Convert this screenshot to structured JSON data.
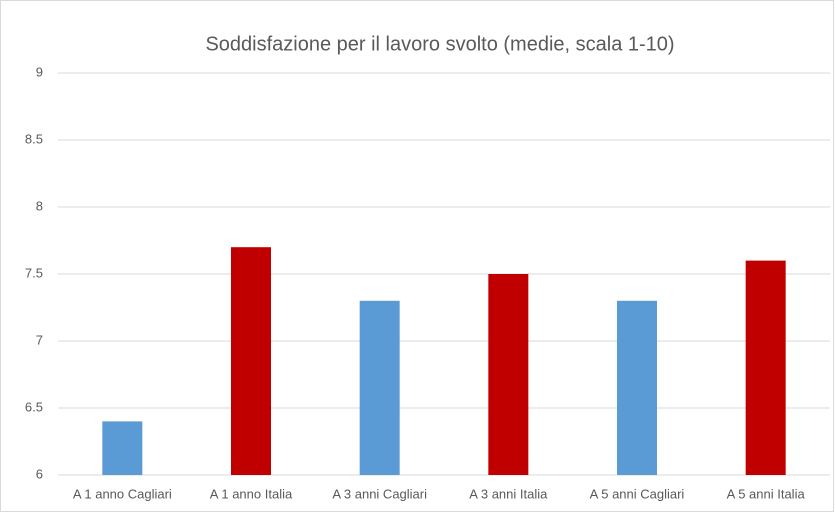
{
  "chart_data": {
    "type": "bar",
    "title": "Soddisfazione per il lavoro svolto (medie, scala 1-10)",
    "categories": [
      "A 1 anno Cagliari",
      "A 1 anno Italia",
      "A 3 anni Cagliari",
      "A 3 anni Italia",
      "A 5 anni Cagliari",
      "A 5 anni Italia"
    ],
    "values": [
      6.4,
      7.7,
      7.3,
      7.5,
      7.3,
      7.6
    ],
    "colors": [
      "#5b9bd5",
      "#c00000",
      "#5b9bd5",
      "#c00000",
      "#5b9bd5",
      "#c00000"
    ],
    "ylim": [
      6,
      9
    ],
    "yticks": [
      6,
      6.5,
      7,
      7.5,
      8,
      8.5,
      9
    ],
    "grid": true
  }
}
